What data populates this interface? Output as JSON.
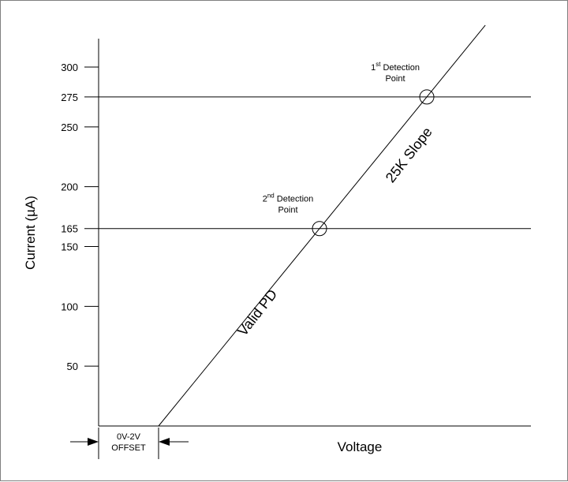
{
  "chart_data": {
    "type": "line",
    "title": "",
    "xlabel": "Voltage",
    "ylabel": "Current (µA)",
    "yticks": [
      50,
      100,
      150,
      165,
      200,
      250,
      275,
      300
    ],
    "ytick_labels": [
      "50",
      "100",
      "150",
      "165",
      "200",
      "250",
      "275",
      "300"
    ],
    "ylim": [
      0,
      335
    ],
    "grid": false,
    "series": [
      {
        "values_y": [
          0,
          335
        ]
      }
    ],
    "reference_lines": [
      {
        "y": 165
      },
      {
        "y": 275
      }
    ],
    "markers": [
      {
        "y": 165,
        "label_main": "2",
        "label_sup": "nd",
        "label_rest": " Detection",
        "label_line2": "Point"
      },
      {
        "y": 275,
        "label_main": "1",
        "label_sup": "st",
        "label_rest": " Detection",
        "label_line2": "Point"
      }
    ],
    "line_annotations": {
      "lower": "Valid PD",
      "upper": "25K Slope"
    },
    "offset_annotation": {
      "line1": "0V-2V",
      "line2": "OFFSET"
    }
  }
}
